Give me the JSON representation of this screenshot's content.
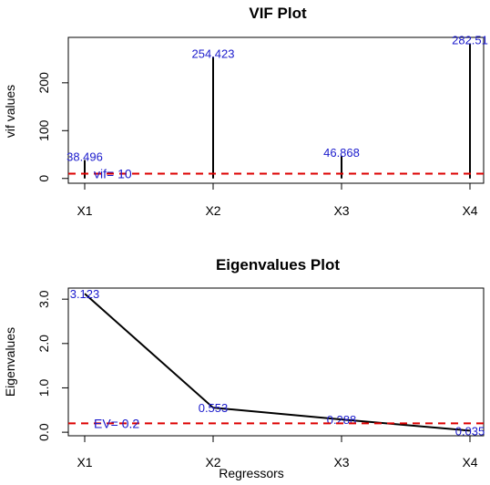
{
  "chart_data": [
    {
      "type": "bar",
      "title": "VIF Plot",
      "xlabel": "",
      "ylabel": "vif values",
      "categories": [
        "X1",
        "X2",
        "X3",
        "X4"
      ],
      "values": [
        38.496,
        254.423,
        46.868,
        282.513
      ],
      "value_labels": [
        "38.496",
        "254.423",
        "46.868",
        "282.51"
      ],
      "yticks": [
        0,
        100,
        200
      ],
      "ylim": [
        -10,
        295
      ],
      "reference_line": {
        "value": 10,
        "label": "vif= 10",
        "color": "#dd0000"
      },
      "label_color": "#1a1acc",
      "grid": false
    },
    {
      "type": "line",
      "title": "Eigenvalues Plot",
      "xlabel": "Regressors",
      "ylabel": "Eigenvalues",
      "categories": [
        "X1",
        "X2",
        "X3",
        "X4"
      ],
      "values": [
        3.123,
        0.553,
        0.288,
        0.035
      ],
      "value_labels": [
        "3.123",
        "0.553",
        "0.288",
        "0.035"
      ],
      "yticks": [
        0.0,
        1.0,
        2.0,
        3.0
      ],
      "ytick_labels": [
        "0.0",
        "1.0",
        "2.0",
        "3.0"
      ],
      "ylim": [
        -0.08,
        3.25
      ],
      "reference_line": {
        "value": 0.2,
        "label": "EV= 0.2",
        "color": "#dd0000"
      },
      "label_color": "#1a1acc",
      "grid": false
    }
  ]
}
